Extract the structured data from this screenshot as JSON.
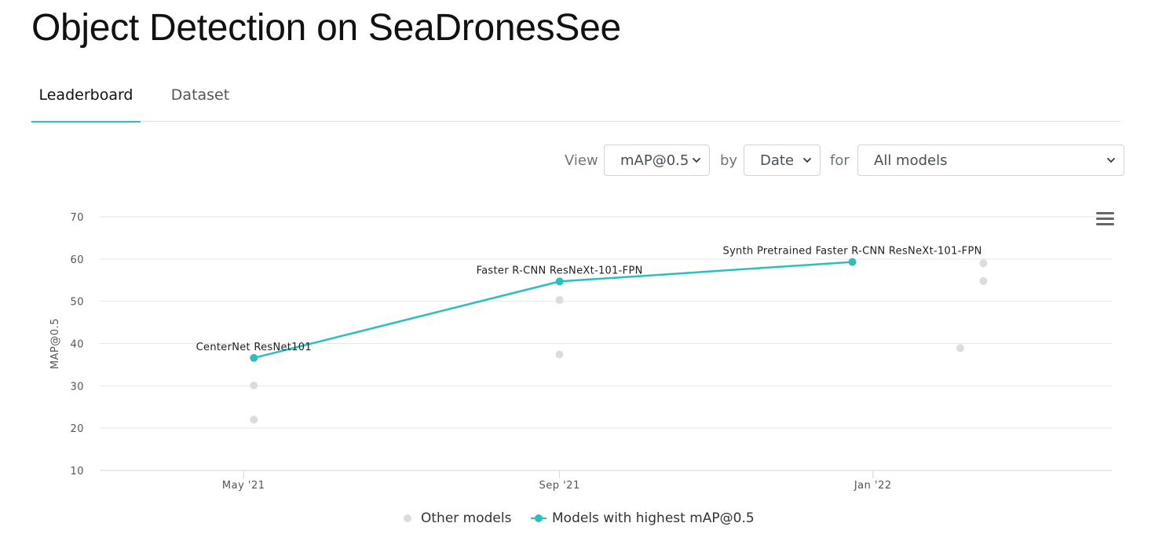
{
  "page": {
    "title": "Object Detection on SeaDronesSee"
  },
  "tabs": [
    {
      "label": "Leaderboard",
      "active": true
    },
    {
      "label": "Dataset",
      "active": false
    }
  ],
  "controls": {
    "view_label": "View",
    "view_value": "mAP@0.5",
    "by_label": "by",
    "by_value": "Date",
    "for_label": "for",
    "for_value": "All models"
  },
  "colors": {
    "accent": "#2bbfbb",
    "other_models": "#dcdcdc",
    "grid": "#e6e6e6",
    "axis": "#ccd6eb"
  },
  "icons": {
    "menu": "hamburger-menu-icon",
    "dropdown": "chevron-down-icon"
  },
  "chart_data": {
    "type": "scatter",
    "title": "",
    "ylabel": "MAP@0.5",
    "xlabel": "",
    "ylim": [
      10,
      70
    ],
    "yticks": [
      10,
      20,
      30,
      40,
      50,
      60,
      70
    ],
    "xticks": [
      {
        "date": "2021-05-01",
        "label": "May '21"
      },
      {
        "date": "2021-09-01",
        "label": "Sep '21"
      },
      {
        "date": "2022-01-01",
        "label": "Jan '22"
      }
    ],
    "xlim": [
      "2021-03-06",
      "2022-04-04"
    ],
    "grid": true,
    "legend_position": "bottom-center",
    "series": [
      {
        "name": "Other models",
        "kind": "scatter",
        "color": "#dcdcdc",
        "points": [
          {
            "x": "2021-05-05",
            "y": 30.1
          },
          {
            "x": "2021-05-05",
            "y": 22.0
          },
          {
            "x": "2021-09-01",
            "y": 50.3
          },
          {
            "x": "2021-09-01",
            "y": 37.4
          },
          {
            "x": "2022-02-13",
            "y": 59.0
          },
          {
            "x": "2022-02-13",
            "y": 54.8
          },
          {
            "x": "2022-02-04",
            "y": 38.9
          }
        ]
      },
      {
        "name": "Models with highest mAP@0.5",
        "kind": "line",
        "color": "#2bbfbb",
        "points": [
          {
            "x": "2021-05-05",
            "y": 36.6,
            "label": "CenterNet ResNet101"
          },
          {
            "x": "2021-09-01",
            "y": 54.7,
            "label": "Faster R-CNN ResNeXt-101-FPN"
          },
          {
            "x": "2021-12-24",
            "y": 59.3,
            "label": "Synth Pretrained Faster R-CNN ResNeXt-101-FPN"
          }
        ]
      }
    ]
  }
}
